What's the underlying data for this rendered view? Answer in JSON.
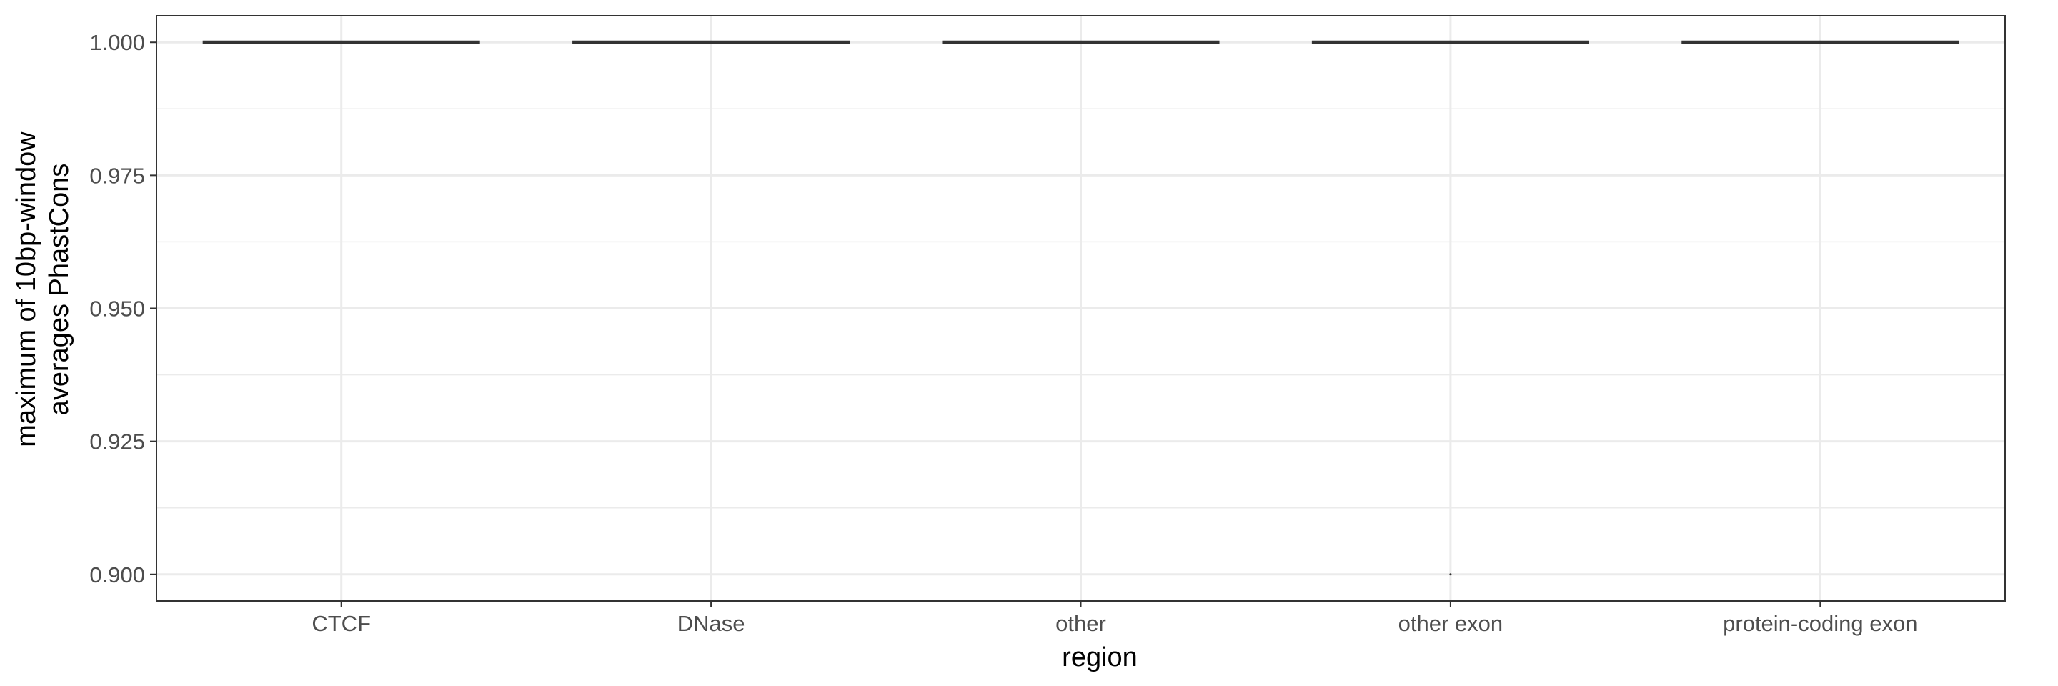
{
  "chart_data": {
    "type": "boxplot",
    "xlabel": "region",
    "ylabel": [
      "maximum of 10bp-window",
      "averages PhastCons"
    ],
    "categories": [
      "CTCF",
      "DNase",
      "other",
      "other exon",
      "protein-coding exon"
    ],
    "ylim": [
      0.895,
      1.005
    ],
    "y_ticks": [
      0.9,
      0.925,
      0.95,
      0.975,
      1.0
    ],
    "y_tick_labels": [
      "0.900",
      "0.925",
      "0.950",
      "0.975",
      "1.000"
    ],
    "grid": true,
    "boxes": [
      {
        "category": "CTCF",
        "min": 1.0,
        "q1": 1.0,
        "median": 1.0,
        "q3": 1.0,
        "max": 1.0,
        "outliers": []
      },
      {
        "category": "DNase",
        "min": 1.0,
        "q1": 1.0,
        "median": 1.0,
        "q3": 1.0,
        "max": 1.0,
        "outliers": []
      },
      {
        "category": "other",
        "min": 1.0,
        "q1": 1.0,
        "median": 1.0,
        "q3": 1.0,
        "max": 1.0,
        "outliers": []
      },
      {
        "category": "other exon",
        "min": 1.0,
        "q1": 1.0,
        "median": 1.0,
        "q3": 1.0,
        "max": 1.0,
        "outliers": [
          0.9
        ]
      },
      {
        "category": "protein-coding exon",
        "min": 1.0,
        "q1": 1.0,
        "median": 1.0,
        "q3": 1.0,
        "max": 1.0,
        "outliers": []
      }
    ],
    "colors": {
      "box": "#333333",
      "grid": "#ebebeb",
      "panel_border": "#333333"
    }
  }
}
